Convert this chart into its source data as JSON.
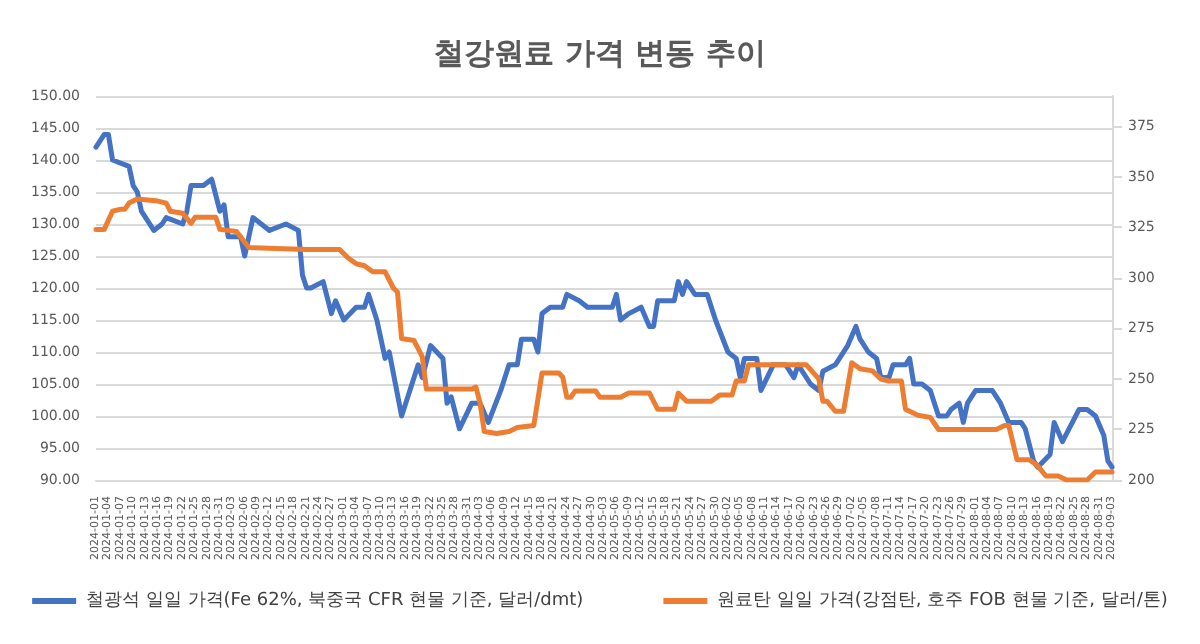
{
  "chart_data": {
    "type": "line",
    "title": "철강원료 가격 변동 추이",
    "xlim": [
      "2024-01-01",
      "2024-09-03"
    ],
    "xticks": [
      "2024-01-01",
      "2024-01-04",
      "2024-01-07",
      "2024-01-10",
      "2024-01-13",
      "2024-01-16",
      "2024-01-19",
      "2024-01-22",
      "2024-01-25",
      "2024-01-28",
      "2024-01-31",
      "2024-02-03",
      "2024-02-06",
      "2024-02-09",
      "2024-02-12",
      "2024-02-15",
      "2024-02-18",
      "2024-02-21",
      "2024-02-24",
      "2024-02-27",
      "2024-03-01",
      "2024-03-04",
      "2024-03-07",
      "2024-03-10",
      "2024-03-13",
      "2024-03-16",
      "2024-03-19",
      "2024-03-22",
      "2024-03-25",
      "2024-03-28",
      "2024-03-31",
      "2024-04-03",
      "2024-04-06",
      "2024-04-09",
      "2024-04-12",
      "2024-04-15",
      "2024-04-18",
      "2024-04-21",
      "2024-04-24",
      "2024-04-27",
      "2024-04-30",
      "2024-05-03",
      "2024-05-06",
      "2024-05-09",
      "2024-05-12",
      "2024-05-15",
      "2024-05-18",
      "2024-05-21",
      "2024-05-24",
      "2024-05-27",
      "2024-05-30",
      "2024-06-02",
      "2024-06-05",
      "2024-06-08",
      "2024-06-11",
      "2024-06-14",
      "2024-06-17",
      "2024-06-20",
      "2024-06-23",
      "2024-06-26",
      "2024-06-29",
      "2024-07-02",
      "2024-07-05",
      "2024-07-08",
      "2024-07-11",
      "2024-07-14",
      "2024-07-17",
      "2024-07-20",
      "2024-07-23",
      "2024-07-26",
      "2024-07-29",
      "2024-08-01",
      "2024-08-04",
      "2024-08-07",
      "2024-08-10",
      "2024-08-13",
      "2024-08-16",
      "2024-08-19",
      "2024-08-22",
      "2024-08-25",
      "2024-08-28",
      "2024-08-31",
      "2024-09-03"
    ],
    "ylim": [
      90,
      150
    ],
    "yticks": [
      {
        "value": 90,
        "label": "90.00"
      },
      {
        "value": 95,
        "label": "95.00"
      },
      {
        "value": 100,
        "label": "100.00"
      },
      {
        "value": 105,
        "label": "105.00"
      },
      {
        "value": 110,
        "label": "110.00"
      },
      {
        "value": 115,
        "label": "115.00"
      },
      {
        "value": 120,
        "label": "120.00"
      },
      {
        "value": 125,
        "label": "125.00"
      },
      {
        "value": 130,
        "label": "130.00"
      },
      {
        "value": 135,
        "label": "135.00"
      },
      {
        "value": 140,
        "label": "140.00"
      },
      {
        "value": 145,
        "label": "145.00"
      },
      {
        "value": 150,
        "label": "150.00"
      }
    ],
    "y2lim": [
      200,
      390
    ],
    "y2ticks": [
      200,
      225,
      250,
      275,
      300,
      325,
      350,
      375
    ],
    "grid": "y",
    "legend": "bottom",
    "marker": "none",
    "line_style": "solid",
    "series": [
      {
        "name": "철광석 일일 가격(Fe 62%, 북중국 CFR 현물 기준, 달러/dmt)",
        "color": "#4472c4",
        "x": [
          "2024-01-01",
          "2024-01-03",
          "2024-01-04",
          "2024-01-05",
          "2024-01-09",
          "2024-01-10",
          "2024-01-11",
          "2024-01-12",
          "2024-01-15",
          "2024-01-17",
          "2024-01-18",
          "2024-01-22",
          "2024-01-23",
          "2024-01-24",
          "2024-01-26",
          "2024-01-27",
          "2024-01-29",
          "2024-01-31",
          "2024-02-01",
          "2024-02-02",
          "2024-02-05",
          "2024-02-06",
          "2024-02-08",
          "2024-02-12",
          "2024-02-16",
          "2024-02-19",
          "2024-02-20",
          "2024-02-21",
          "2024-02-22",
          "2024-02-25",
          "2024-02-27",
          "2024-02-28",
          "2024-03-01",
          "2024-03-04",
          "2024-03-06",
          "2024-03-07",
          "2024-03-09",
          "2024-03-11",
          "2024-03-12",
          "2024-03-15",
          "2024-03-19",
          "2024-03-20",
          "2024-03-22",
          "2024-03-25",
          "2024-03-26",
          "2024-03-27",
          "2024-03-29",
          "2024-04-01",
          "2024-04-03",
          "2024-04-05",
          "2024-04-08",
          "2024-04-10",
          "2024-04-12",
          "2024-04-13",
          "2024-04-16",
          "2024-04-17",
          "2024-04-18",
          "2024-04-20",
          "2024-04-23",
          "2024-04-24",
          "2024-04-27",
          "2024-04-29",
          "2024-05-05",
          "2024-05-06",
          "2024-05-07",
          "2024-05-09",
          "2024-05-12",
          "2024-05-14",
          "2024-05-15",
          "2024-05-16",
          "2024-05-20",
          "2024-05-21",
          "2024-05-22",
          "2024-05-23",
          "2024-05-25",
          "2024-05-28",
          "2024-05-30",
          "2024-06-02",
          "2024-06-04",
          "2024-06-05",
          "2024-06-06",
          "2024-06-09",
          "2024-06-10",
          "2024-06-13",
          "2024-06-16",
          "2024-06-18",
          "2024-06-19",
          "2024-06-22",
          "2024-06-24",
          "2024-06-25",
          "2024-06-28",
          "2024-07-01",
          "2024-07-03",
          "2024-07-04",
          "2024-07-06",
          "2024-07-08",
          "2024-07-09",
          "2024-07-11",
          "2024-07-12",
          "2024-07-15",
          "2024-07-16",
          "2024-07-17",
          "2024-07-19",
          "2024-07-21",
          "2024-07-23",
          "2024-07-25",
          "2024-07-26",
          "2024-07-28",
          "2024-07-29",
          "2024-07-30",
          "2024-08-01",
          "2024-08-03",
          "2024-08-05",
          "2024-08-07",
          "2024-08-09",
          "2024-08-12",
          "2024-08-13",
          "2024-08-15",
          "2024-08-16",
          "2024-08-19",
          "2024-08-20",
          "2024-08-22",
          "2024-08-26",
          "2024-08-27",
          "2024-08-28",
          "2024-08-30",
          "2024-09-01",
          "2024-09-02",
          "2024-09-03"
        ],
        "values": [
          142,
          144,
          144,
          140,
          139,
          136,
          135,
          132,
          129,
          130,
          131,
          130,
          132,
          136,
          136,
          136,
          137,
          132,
          133,
          128,
          128,
          125,
          131,
          129,
          130,
          129,
          122,
          120,
          120,
          121,
          116,
          118,
          115,
          117,
          117,
          119,
          115,
          109,
          110,
          100,
          108,
          106,
          111,
          109,
          102,
          103,
          98,
          102,
          102,
          99,
          104,
          108,
          108,
          112,
          112,
          110,
          116,
          117,
          117,
          119,
          118,
          117,
          117,
          119,
          115,
          116,
          117,
          114,
          114,
          118,
          118,
          121,
          119,
          121,
          119,
          119,
          115,
          110,
          109,
          106,
          109,
          109,
          104,
          108,
          108,
          106,
          108,
          105,
          104,
          107,
          108,
          111,
          114,
          112,
          110,
          109,
          106,
          106,
          108,
          108,
          109,
          105,
          105,
          104,
          100,
          100,
          101,
          102,
          99,
          102,
          104,
          104,
          104,
          102,
          99,
          99,
          98,
          93,
          92,
          94,
          99,
          96,
          101,
          101,
          101,
          100,
          97,
          93,
          92
        ]
      },
      {
        "name": "원료탄 일일 가격(강점탄, 호주 FOB 현물 기준, 달러/톤)",
        "color": "#ed7d31",
        "axis": "y2",
        "x": [
          "2024-01-01",
          "2024-01-03",
          "2024-01-05",
          "2024-01-07",
          "2024-01-08",
          "2024-01-09",
          "2024-01-11",
          "2024-01-16",
          "2024-01-18",
          "2024-01-19",
          "2024-01-22",
          "2024-01-24",
          "2024-01-25",
          "2024-01-30",
          "2024-01-31",
          "2024-02-04",
          "2024-02-07",
          "2024-02-21",
          "2024-02-29",
          "2024-03-02",
          "2024-03-04",
          "2024-03-06",
          "2024-03-08",
          "2024-03-11",
          "2024-03-13",
          "2024-03-14",
          "2024-03-15",
          "2024-03-18",
          "2024-03-20",
          "2024-03-21",
          "2024-04-01",
          "2024-04-02",
          "2024-04-03",
          "2024-04-04",
          "2024-04-07",
          "2024-04-10",
          "2024-04-12",
          "2024-04-16",
          "2024-04-18",
          "2024-04-22",
          "2024-04-23",
          "2024-04-24",
          "2024-04-25",
          "2024-04-26",
          "2024-05-01",
          "2024-05-02",
          "2024-05-07",
          "2024-05-09",
          "2024-05-14",
          "2024-05-16",
          "2024-05-20",
          "2024-05-21",
          "2024-05-23",
          "2024-05-29",
          "2024-05-31",
          "2024-06-03",
          "2024-06-04",
          "2024-06-06",
          "2024-06-07",
          "2024-06-21",
          "2024-06-24",
          "2024-06-25",
          "2024-06-26",
          "2024-06-28",
          "2024-06-30",
          "2024-07-02",
          "2024-07-04",
          "2024-07-07",
          "2024-07-09",
          "2024-07-11",
          "2024-07-14",
          "2024-07-15",
          "2024-07-18",
          "2024-07-21",
          "2024-07-23",
          "2024-08-06",
          "2024-08-08",
          "2024-08-09",
          "2024-08-11",
          "2024-08-14",
          "2024-08-16",
          "2024-08-18",
          "2024-08-21",
          "2024-08-23",
          "2024-08-28",
          "2024-08-30",
          "2024-09-03"
        ],
        "values": [
          324,
          324,
          333,
          334,
          334,
          337,
          339,
          338,
          337,
          333,
          332,
          327,
          330,
          330,
          324,
          323,
          315,
          314,
          314,
          310,
          307,
          306,
          303,
          303,
          295,
          293,
          270,
          269,
          261,
          245,
          245,
          246,
          238,
          224,
          223,
          224,
          226,
          227,
          253,
          253,
          251,
          241,
          241,
          244,
          244,
          241,
          241,
          243,
          243,
          235,
          235,
          243,
          239,
          239,
          242,
          242,
          249,
          249,
          257,
          257,
          250,
          239,
          239,
          234,
          234,
          258,
          255,
          254,
          250,
          249,
          249,
          235,
          232,
          231,
          225,
          225,
          227,
          227,
          210,
          210,
          207,
          202,
          202,
          200,
          200,
          204,
          204
        ]
      }
    ]
  }
}
